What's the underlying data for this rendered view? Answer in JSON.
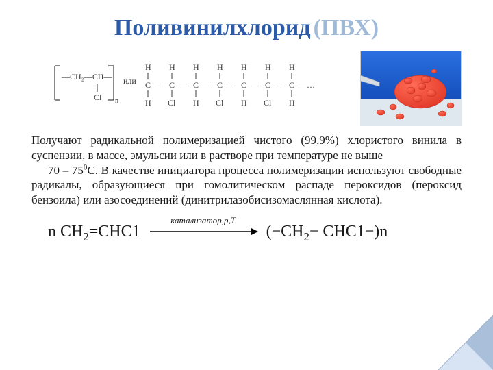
{
  "title": {
    "main": "Поливинилхлорид",
    "abbrev": "(ПВХ)",
    "color_main": "#2a5aa8",
    "color_abbrev": "#9fb9d8",
    "fontsize": 34
  },
  "structural_formula": {
    "unit_top": "—CH₂—CH—",
    "unit_bottom": "Cl",
    "subscript": "n",
    "connector": "или",
    "chain_top": [
      "H",
      "H",
      "H",
      "H",
      "H",
      "H",
      "H"
    ],
    "chain_mid": [
      "C",
      "C",
      "C",
      "C",
      "C",
      "C",
      "C"
    ],
    "chain_bottom": [
      "H",
      "Cl",
      "H",
      "Cl",
      "H",
      "Cl",
      "H"
    ],
    "trailing": "…",
    "text_color": "#3a3a3a",
    "fontsize": 10
  },
  "photo": {
    "description": "red-pvc-pellets",
    "bg_gradient_from": "#2a6fe0",
    "bg_gradient_to": "#0a3fa8",
    "pellet_color": "#e23b2a",
    "pellet_highlight": "#ff6a55",
    "border_color": "#cfcfcf"
  },
  "body": {
    "p1": "Получают радикальной полимеризацией чистого (99,9%) хлористого винила в суспензии, в массе, эмульсии или в растворе при температуре не выше",
    "p2_a": "70 – 75",
    "p2_deg": "0",
    "p2_b": "С. В качестве инициатора процесса  полимеризации используют свободные радикалы, образующиеся при гомолитическом распаде пероксидов (пероксид бензоила) или азосоединений (динитрилазобисизомаслянная кислота).",
    "fontsize": 17,
    "text_color": "#1a1a1a"
  },
  "reaction": {
    "left": "n CH",
    "left_sub": "2",
    "left_tail": "=CHC1",
    "arrow_label": "катализатор,p,T",
    "right_a": "(−CH",
    "right_sub": "2",
    "right_b": "− CHC1−)n",
    "fontsize": 24,
    "arrow_length": 160,
    "arrow_color": "#000000",
    "label_color": "#2a2a2a"
  },
  "corner": {
    "fold_color": "#d8e4f4",
    "fold_shadow": "#8aa6c8"
  }
}
